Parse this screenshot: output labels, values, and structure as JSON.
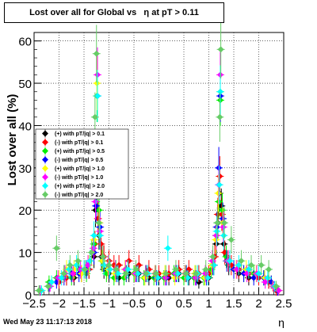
{
  "chart_data": {
    "type": "scatter",
    "title": "Lost over all for Global vs   η at pT > 0.11",
    "xlabel": "η",
    "ylabel": "Lost over all (%)",
    "xlim": [
      -2.5,
      2.5
    ],
    "ylim": [
      0,
      62
    ],
    "xticks": [
      -2.5,
      -2,
      -1.5,
      -1,
      -0.5,
      0,
      0.5,
      1,
      1.5,
      2,
      2.5
    ],
    "xtick_labels": [
      "−2.5",
      "−2",
      "−1.5",
      "−1",
      "−0.5",
      "0",
      "0.5",
      "1",
      "1.5",
      "2",
      "2.5"
    ],
    "yticks": [
      0,
      10,
      20,
      30,
      40,
      50,
      60
    ],
    "ytick_labels": [
      "0",
      "10",
      "20",
      "30",
      "40",
      "50",
      "60"
    ],
    "grid": true,
    "legend_position": "left-middle",
    "series": [
      {
        "name": "(+) with pT/|q| > 0.1",
        "color": "#000000",
        "points": [
          [
            -2.38,
            1
          ],
          [
            -2.2,
            2
          ],
          [
            -2.0,
            3
          ],
          [
            -1.85,
            4
          ],
          [
            -1.7,
            4
          ],
          [
            -1.55,
            5
          ],
          [
            -1.4,
            6
          ],
          [
            -1.3,
            9
          ],
          [
            -1.27,
            20
          ],
          [
            -1.24,
            24
          ],
          [
            -1.2,
            14
          ],
          [
            -1.15,
            9
          ],
          [
            -1.1,
            6
          ],
          [
            -1.0,
            5
          ],
          [
            -0.8,
            4
          ],
          [
            -0.6,
            5
          ],
          [
            -0.4,
            5
          ],
          [
            -0.2,
            4
          ],
          [
            0.0,
            4
          ],
          [
            0.2,
            4
          ],
          [
            0.4,
            5
          ],
          [
            0.6,
            4
          ],
          [
            0.8,
            3
          ],
          [
            1.0,
            4
          ],
          [
            1.1,
            7
          ],
          [
            1.15,
            12
          ],
          [
            1.18,
            17
          ],
          [
            1.21,
            24
          ],
          [
            1.25,
            21
          ],
          [
            1.3,
            12
          ],
          [
            1.4,
            7
          ],
          [
            1.6,
            5
          ],
          [
            1.8,
            4
          ],
          [
            2.0,
            4
          ],
          [
            2.2,
            3
          ],
          [
            2.35,
            1
          ]
        ]
      },
      {
        "name": "(-) with pT/|q| > 0.1",
        "color": "#ff0000",
        "points": [
          [
            -2.38,
            1
          ],
          [
            -2.2,
            2
          ],
          [
            -2.0,
            3
          ],
          [
            -1.85,
            4
          ],
          [
            -1.7,
            5
          ],
          [
            -1.55,
            5
          ],
          [
            -1.4,
            6
          ],
          [
            -1.28,
            12
          ],
          [
            -1.22,
            18
          ],
          [
            -1.16,
            12
          ],
          [
            -1.1,
            9
          ],
          [
            -1.0,
            8
          ],
          [
            -0.9,
            7
          ],
          [
            -0.8,
            7
          ],
          [
            -0.6,
            8
          ],
          [
            -0.4,
            7
          ],
          [
            -0.2,
            6
          ],
          [
            0.0,
            5
          ],
          [
            0.2,
            5
          ],
          [
            0.4,
            6
          ],
          [
            0.6,
            6
          ],
          [
            0.8,
            5
          ],
          [
            1.0,
            5
          ],
          [
            1.12,
            9
          ],
          [
            1.18,
            19
          ],
          [
            1.22,
            28
          ],
          [
            1.26,
            19
          ],
          [
            1.32,
            10
          ],
          [
            1.45,
            7
          ],
          [
            1.6,
            6
          ],
          [
            1.8,
            5
          ],
          [
            2.0,
            4
          ],
          [
            2.2,
            3
          ],
          [
            2.35,
            1
          ]
        ]
      },
      {
        "name": "(+) with pT/|q| > 0.5",
        "color": "#00ee00",
        "points": [
          [
            -2.4,
            1
          ],
          [
            -2.2,
            3
          ],
          [
            -2.05,
            4
          ],
          [
            -1.9,
            5
          ],
          [
            -1.75,
            4
          ],
          [
            -1.6,
            6
          ],
          [
            -1.45,
            5
          ],
          [
            -1.3,
            12
          ],
          [
            -1.26,
            22
          ],
          [
            -1.24,
            47
          ],
          [
            -1.2,
            20
          ],
          [
            -1.14,
            8
          ],
          [
            -1.05,
            5
          ],
          [
            -0.9,
            4
          ],
          [
            -0.7,
            4
          ],
          [
            -0.5,
            5
          ],
          [
            -0.3,
            4
          ],
          [
            -0.1,
            4
          ],
          [
            0.1,
            4
          ],
          [
            0.3,
            5
          ],
          [
            0.5,
            4
          ],
          [
            0.7,
            4
          ],
          [
            0.9,
            4
          ],
          [
            1.05,
            6
          ],
          [
            1.15,
            14
          ],
          [
            1.2,
            22
          ],
          [
            1.23,
            46
          ],
          [
            1.27,
            20
          ],
          [
            1.35,
            9
          ],
          [
            1.5,
            6
          ],
          [
            1.7,
            5
          ],
          [
            1.9,
            5
          ],
          [
            2.1,
            4
          ],
          [
            2.25,
            3
          ],
          [
            2.38,
            1
          ]
        ]
      },
      {
        "name": "(-) with pT/|q| > 0.5",
        "color": "#0000ff",
        "points": [
          [
            -2.38,
            1
          ],
          [
            -2.2,
            2
          ],
          [
            -2.05,
            3
          ],
          [
            -1.9,
            4
          ],
          [
            -1.75,
            5
          ],
          [
            -1.6,
            5
          ],
          [
            -1.45,
            6
          ],
          [
            -1.3,
            10
          ],
          [
            -1.26,
            21
          ],
          [
            -1.23,
            47
          ],
          [
            -1.18,
            16
          ],
          [
            -1.12,
            8
          ],
          [
            -1.0,
            6
          ],
          [
            -0.85,
            5
          ],
          [
            -0.65,
            5
          ],
          [
            -0.45,
            5
          ],
          [
            -0.25,
            5
          ],
          [
            -0.05,
            4
          ],
          [
            0.15,
            4
          ],
          [
            0.35,
            5
          ],
          [
            0.55,
            5
          ],
          [
            0.75,
            4
          ],
          [
            0.95,
            4
          ],
          [
            1.08,
            7
          ],
          [
            1.16,
            16
          ],
          [
            1.2,
            30
          ],
          [
            1.23,
            47
          ],
          [
            1.28,
            18
          ],
          [
            1.36,
            8
          ],
          [
            1.5,
            6
          ],
          [
            1.7,
            5
          ],
          [
            1.9,
            4
          ],
          [
            2.1,
            4
          ],
          [
            2.25,
            3
          ],
          [
            2.38,
            1
          ]
        ]
      },
      {
        "name": "(+) with pT/|q| > 1.0",
        "color": "#ffff00",
        "points": [
          [
            -2.35,
            1
          ],
          [
            -2.15,
            3
          ],
          [
            -2.0,
            4
          ],
          [
            -1.85,
            6
          ],
          [
            -1.7,
            6
          ],
          [
            -1.55,
            5
          ],
          [
            -1.4,
            7
          ],
          [
            -1.3,
            13
          ],
          [
            -1.27,
            24
          ],
          [
            -1.24,
            50
          ],
          [
            -1.19,
            17
          ],
          [
            -1.13,
            8
          ],
          [
            -1.02,
            6
          ],
          [
            -0.88,
            5
          ],
          [
            -0.68,
            6
          ],
          [
            -0.48,
            5
          ],
          [
            -0.28,
            4
          ],
          [
            -0.08,
            5
          ],
          [
            0.12,
            5
          ],
          [
            0.32,
            4
          ],
          [
            0.52,
            5
          ],
          [
            0.72,
            5
          ],
          [
            0.92,
            4
          ],
          [
            1.06,
            7
          ],
          [
            1.14,
            13
          ],
          [
            1.19,
            24
          ],
          [
            1.23,
            48
          ],
          [
            1.28,
            17
          ],
          [
            1.38,
            8
          ],
          [
            1.55,
            6
          ],
          [
            1.75,
            6
          ],
          [
            1.95,
            5
          ],
          [
            2.12,
            4
          ],
          [
            2.28,
            2
          ],
          [
            2.4,
            1
          ]
        ]
      },
      {
        "name": "(-) with pT/|q| > 1.0",
        "color": "#ff00ff",
        "points": [
          [
            -2.38,
            1
          ],
          [
            -2.18,
            2
          ],
          [
            -2.02,
            4
          ],
          [
            -1.88,
            5
          ],
          [
            -1.72,
            5
          ],
          [
            -1.57,
            6
          ],
          [
            -1.42,
            7
          ],
          [
            -1.31,
            11
          ],
          [
            -1.27,
            22
          ],
          [
            -1.23,
            52
          ],
          [
            -1.18,
            15
          ],
          [
            -1.12,
            9
          ],
          [
            -1.01,
            7
          ],
          [
            -0.87,
            6
          ],
          [
            -0.67,
            6
          ],
          [
            -0.47,
            5
          ],
          [
            -0.27,
            5
          ],
          [
            -0.07,
            5
          ],
          [
            0.13,
            4
          ],
          [
            0.33,
            5
          ],
          [
            0.53,
            5
          ],
          [
            0.73,
            4
          ],
          [
            0.93,
            5
          ],
          [
            1.07,
            8
          ],
          [
            1.15,
            14
          ],
          [
            1.2,
            26
          ],
          [
            1.23,
            52
          ],
          [
            1.29,
            16
          ],
          [
            1.39,
            8
          ],
          [
            1.56,
            6
          ],
          [
            1.76,
            5
          ],
          [
            1.96,
            5
          ],
          [
            2.13,
            3
          ],
          [
            2.29,
            2
          ],
          [
            2.4,
            1
          ]
        ]
      },
      {
        "name": "(+) with pT/|q| > 2.0",
        "color": "#00ffff",
        "points": [
          [
            -2.35,
            1
          ],
          [
            -2.15,
            3
          ],
          [
            -1.95,
            4
          ],
          [
            -1.8,
            6
          ],
          [
            -1.65,
            7
          ],
          [
            -1.5,
            6
          ],
          [
            -1.38,
            8
          ],
          [
            -1.3,
            14
          ],
          [
            -1.26,
            26
          ],
          [
            -1.23,
            47
          ],
          [
            -1.18,
            14
          ],
          [
            -1.1,
            7
          ],
          [
            -0.98,
            6
          ],
          [
            -0.82,
            5
          ],
          [
            -0.62,
            6
          ],
          [
            -0.42,
            5
          ],
          [
            -0.22,
            5
          ],
          [
            -0.02,
            4
          ],
          [
            0.18,
            11
          ],
          [
            0.38,
            5
          ],
          [
            0.58,
            4
          ],
          [
            0.78,
            5
          ],
          [
            0.98,
            4
          ],
          [
            1.1,
            7
          ],
          [
            1.16,
            15
          ],
          [
            1.21,
            26
          ],
          [
            1.23,
            48
          ],
          [
            1.3,
            14
          ],
          [
            1.42,
            8
          ],
          [
            1.6,
            7
          ],
          [
            1.8,
            6
          ],
          [
            2.0,
            5
          ],
          [
            2.18,
            4
          ],
          [
            2.32,
            2
          ]
        ]
      },
      {
        "name": "(-) with pT/|q| > 2.0",
        "color": "#66cc66",
        "points": [
          [
            -2.4,
            1
          ],
          [
            -2.22,
            2
          ],
          [
            -2.05,
            11
          ],
          [
            -1.9,
            5
          ],
          [
            -1.78,
            7
          ],
          [
            -1.62,
            8
          ],
          [
            -1.48,
            6
          ],
          [
            -1.35,
            10
          ],
          [
            -1.28,
            42
          ],
          [
            -1.25,
            57
          ],
          [
            -1.2,
            17
          ],
          [
            -1.12,
            9
          ],
          [
            -1.0,
            7
          ],
          [
            -0.86,
            6
          ],
          [
            -0.66,
            5
          ],
          [
            -0.46,
            6
          ],
          [
            -0.26,
            5
          ],
          [
            -0.06,
            5
          ],
          [
            0.14,
            5
          ],
          [
            0.34,
            6
          ],
          [
            0.54,
            5
          ],
          [
            0.74,
            5
          ],
          [
            0.94,
            6
          ],
          [
            1.08,
            9
          ],
          [
            1.17,
            17
          ],
          [
            1.22,
            42
          ],
          [
            1.24,
            58
          ],
          [
            1.31,
            17
          ],
          [
            1.45,
            13
          ],
          [
            1.65,
            8
          ],
          [
            1.85,
            7
          ],
          [
            2.05,
            7
          ],
          [
            2.2,
            6
          ],
          [
            2.35,
            2
          ]
        ]
      }
    ]
  },
  "footer": {
    "datestamp": "Wed May 23 11:17:13 2018"
  }
}
